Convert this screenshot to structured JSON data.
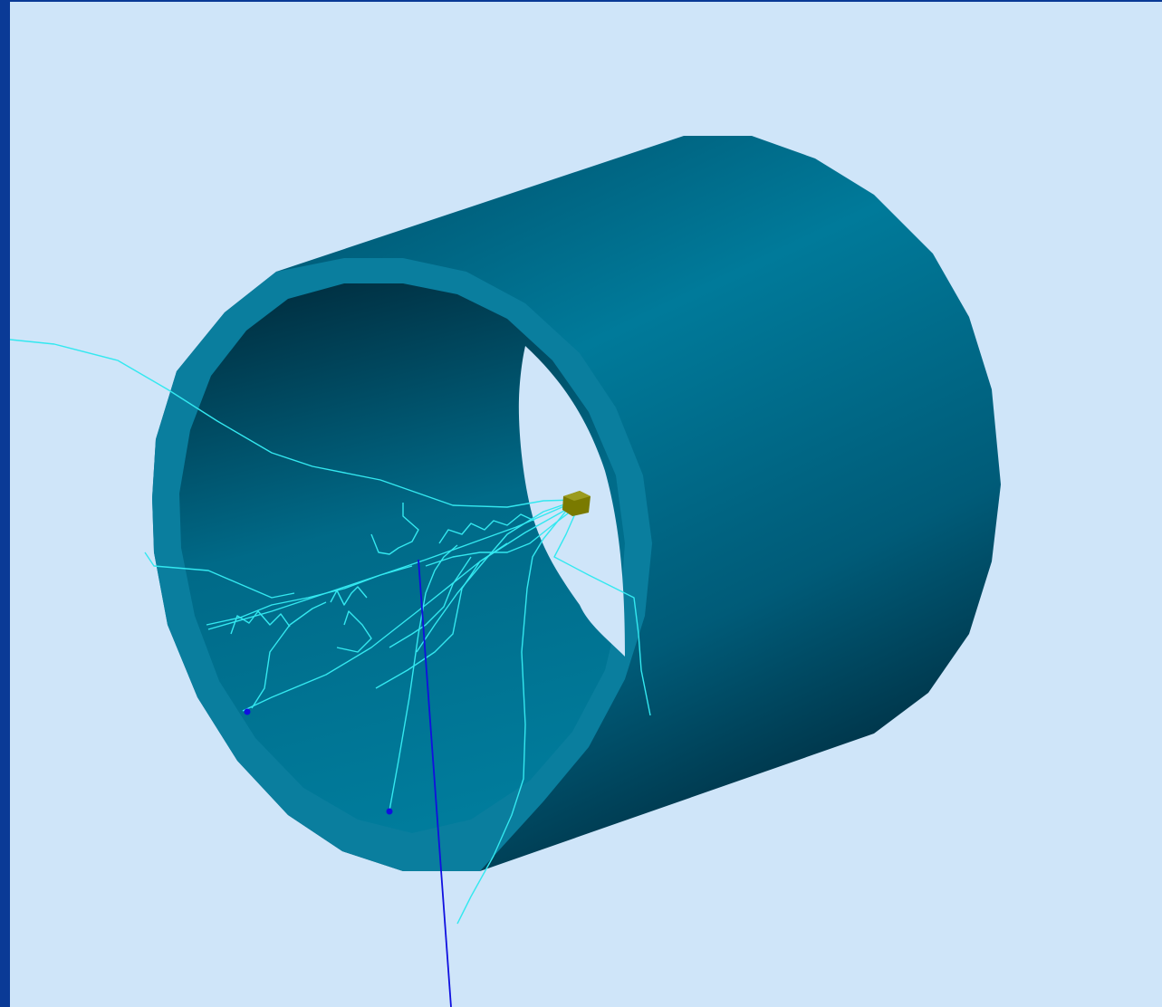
{
  "colors": {
    "window_frame": "#0a3a96",
    "viewport_background": "#cfe5f9",
    "cylinder_body": "#00708f",
    "cylinder_shadow": "#002a3c",
    "cylinder_rim": "#0a7e9e",
    "secondary_tracks": "#33e8f0",
    "primary_track": "#1010e0",
    "vertex_marker": "#7a7a00",
    "hit_points": "#1010e0"
  },
  "scene": {
    "objects": [
      {
        "kind": "hollow-cylinder",
        "name": "detector-barrel"
      },
      {
        "kind": "box",
        "name": "interaction-vertex"
      },
      {
        "kind": "track-bundle",
        "name": "electron-shower-tracks"
      },
      {
        "kind": "straight-track",
        "name": "primary-track"
      }
    ]
  }
}
